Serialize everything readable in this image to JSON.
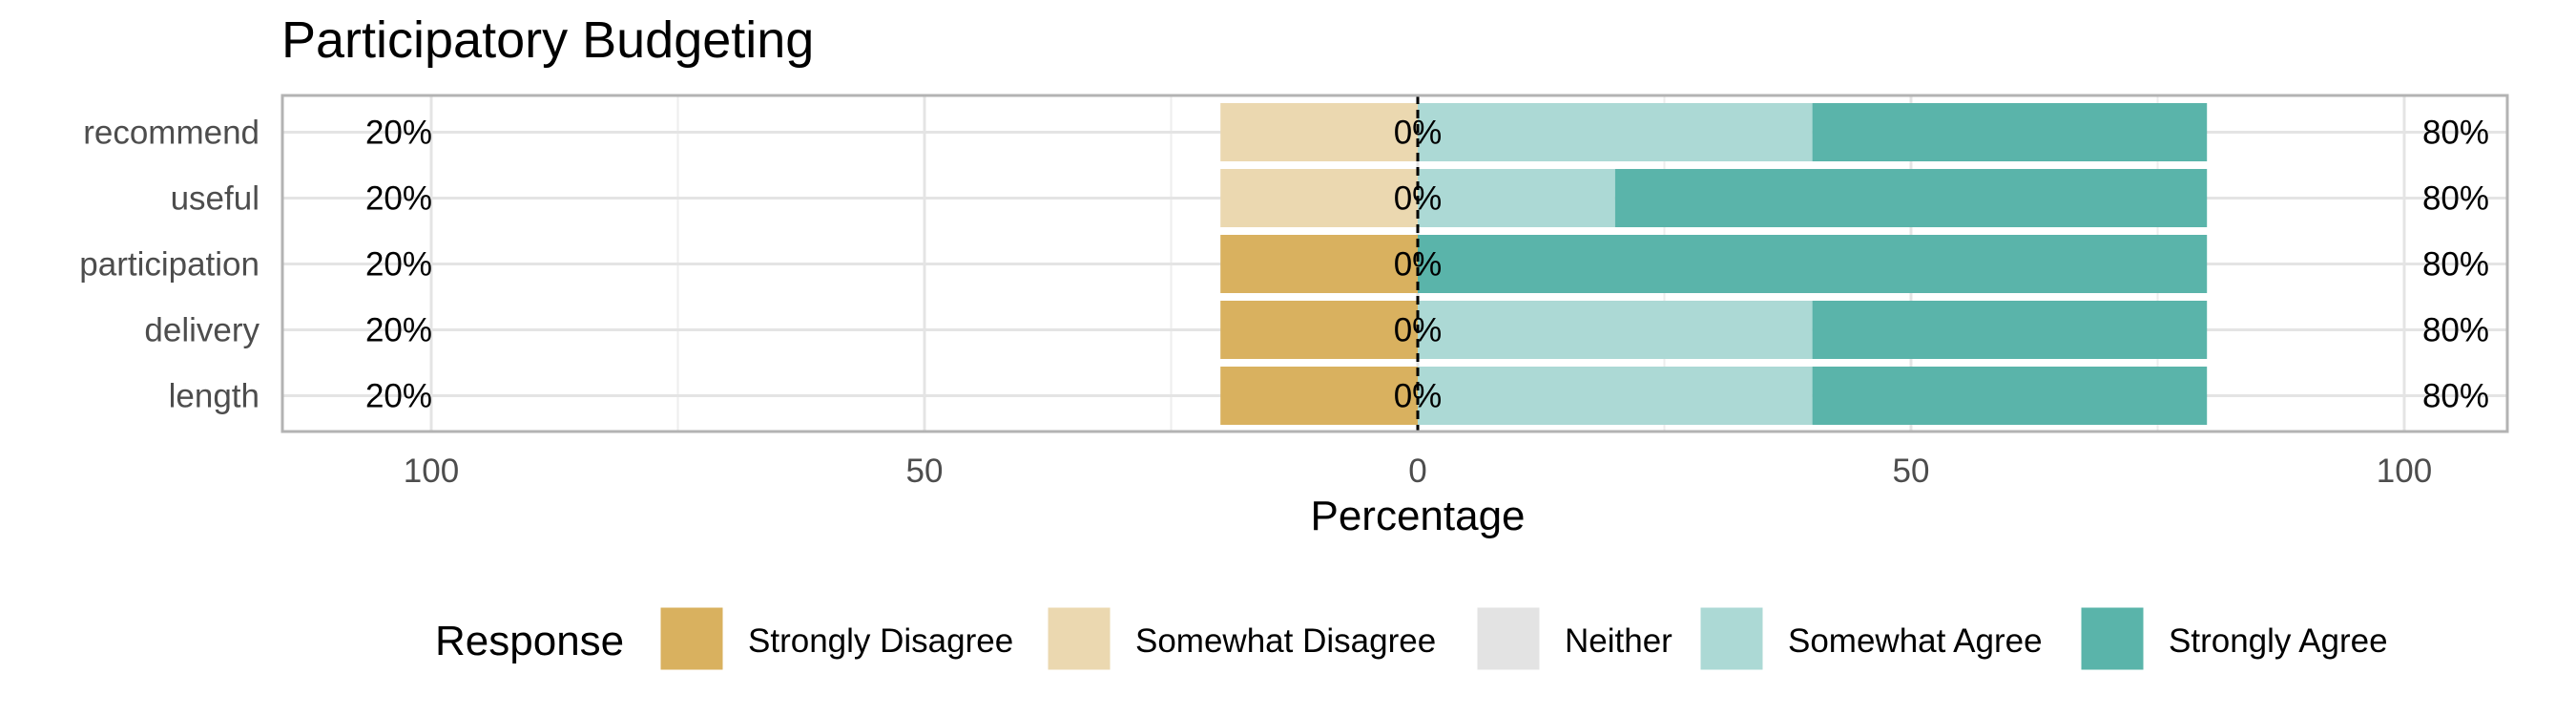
{
  "chart_data": {
    "type": "bar",
    "orientation": "horizontal-diverging",
    "title": "Participatory Budgeting",
    "xlabel": "Percentage",
    "xlim": [
      -100,
      100
    ],
    "xticks": [
      -100,
      -50,
      0,
      50,
      100
    ],
    "xtick_labels": [
      "100",
      "50",
      "0",
      "50",
      "100"
    ],
    "grid": true,
    "legend_position": "bottom",
    "legend_title": "Response",
    "categories": [
      "recommend",
      "useful",
      "participation",
      "delivery",
      "length"
    ],
    "series": [
      {
        "name": "Strongly Disagree",
        "color": "#D9B15F",
        "values": [
          0,
          0,
          20,
          20,
          20
        ]
      },
      {
        "name": "Somewhat Disagree",
        "color": "#EBD8B0",
        "values": [
          20,
          20,
          0,
          0,
          0
        ]
      },
      {
        "name": "Neither",
        "color": "#E3E3E3",
        "values": [
          0,
          0,
          0,
          0,
          0
        ]
      },
      {
        "name": "Somewhat Agree",
        "color": "#ACD9D5",
        "values": [
          40,
          20,
          0,
          40,
          40
        ]
      },
      {
        "name": "Strongly Agree",
        "color": "#5AB4AA",
        "values": [
          40,
          60,
          80,
          40,
          40
        ]
      }
    ],
    "left_labels": [
      "20%",
      "20%",
      "20%",
      "20%",
      "20%"
    ],
    "center_labels": [
      "0%",
      "0%",
      "0%",
      "0%",
      "0%"
    ],
    "right_labels": [
      "80%",
      "80%",
      "80%",
      "80%",
      "80%"
    ]
  }
}
